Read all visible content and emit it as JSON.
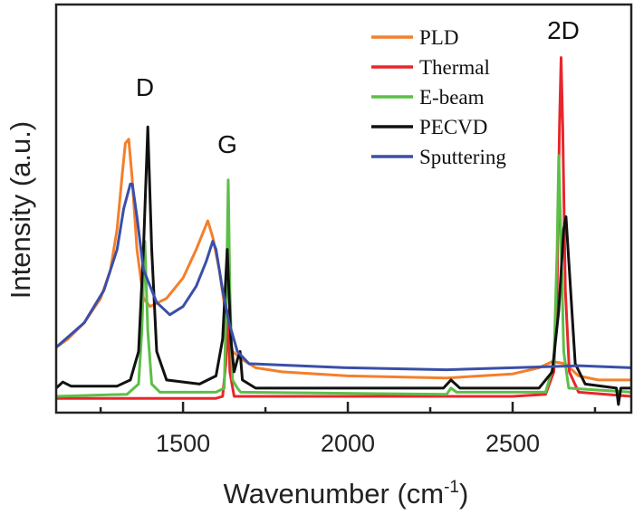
{
  "chart_data": {
    "type": "line",
    "xlabel": "Wavenumber (cm",
    "xlabel_sup": "-1",
    "xlabel_end": ")",
    "ylabel": "Intensity (a.u.)",
    "xlim": [
      1115,
      2860
    ],
    "ylim": [
      0,
      100
    ],
    "xticks": [
      1500,
      2000,
      2500
    ],
    "xminor": [
      1250,
      1750,
      2250,
      2750
    ],
    "grid": false,
    "legend_placement": "top-right",
    "annotations": [
      "D",
      "G",
      "2D"
    ],
    "series": [
      {
        "name": "PLD",
        "color": "#f47f2a",
        "points": [
          [
            1115,
            16
          ],
          [
            1150,
            18
          ],
          [
            1200,
            22
          ],
          [
            1250,
            28
          ],
          [
            1280,
            35
          ],
          [
            1300,
            45
          ],
          [
            1315,
            58
          ],
          [
            1325,
            66
          ],
          [
            1335,
            67
          ],
          [
            1345,
            58
          ],
          [
            1360,
            40
          ],
          [
            1380,
            28
          ],
          [
            1400,
            26
          ],
          [
            1450,
            28
          ],
          [
            1500,
            33
          ],
          [
            1540,
            40
          ],
          [
            1565,
            45
          ],
          [
            1575,
            47
          ],
          [
            1590,
            43
          ],
          [
            1610,
            35
          ],
          [
            1630,
            24
          ],
          [
            1650,
            15
          ],
          [
            1680,
            13
          ],
          [
            1720,
            11
          ],
          [
            1800,
            10
          ],
          [
            2000,
            9
          ],
          [
            2300,
            8.5
          ],
          [
            2500,
            9.5
          ],
          [
            2580,
            11
          ],
          [
            2620,
            12.5
          ],
          [
            2660,
            12
          ],
          [
            2700,
            9
          ],
          [
            2760,
            8
          ],
          [
            2860,
            8
          ]
        ]
      },
      {
        "name": "Thermal",
        "color": "#e8262b",
        "points": [
          [
            1115,
            3.5
          ],
          [
            1600,
            3.5
          ],
          [
            1620,
            4
          ],
          [
            1630,
            12
          ],
          [
            1636,
            25
          ],
          [
            1642,
            10
          ],
          [
            1655,
            4
          ],
          [
            2500,
            4
          ],
          [
            2600,
            4.5
          ],
          [
            2625,
            10
          ],
          [
            2635,
            30
          ],
          [
            2642,
            70
          ],
          [
            2647,
            87
          ],
          [
            2652,
            70
          ],
          [
            2660,
            30
          ],
          [
            2672,
            10
          ],
          [
            2700,
            5
          ],
          [
            2860,
            4
          ]
        ]
      },
      {
        "name": "E-beam",
        "color": "#5cbf47",
        "points": [
          [
            1115,
            4
          ],
          [
            1330,
            4.5
          ],
          [
            1365,
            7
          ],
          [
            1375,
            20
          ],
          [
            1384,
            42
          ],
          [
            1393,
            20
          ],
          [
            1405,
            7
          ],
          [
            1430,
            5
          ],
          [
            1600,
            5
          ],
          [
            1625,
            6
          ],
          [
            1632,
            30
          ],
          [
            1637,
            57
          ],
          [
            1642,
            30
          ],
          [
            1650,
            8
          ],
          [
            1665,
            6
          ],
          [
            1675,
            5
          ],
          [
            2300,
            4.5
          ],
          [
            2313,
            6
          ],
          [
            2330,
            5
          ],
          [
            2600,
            5
          ],
          [
            2625,
            12
          ],
          [
            2635,
            40
          ],
          [
            2640,
            63
          ],
          [
            2646,
            45
          ],
          [
            2655,
            15
          ],
          [
            2670,
            6
          ],
          [
            2860,
            5
          ]
        ]
      },
      {
        "name": "PECVD",
        "color": "#111111",
        "points": [
          [
            1115,
            6
          ],
          [
            1135,
            7.5
          ],
          [
            1160,
            6.5
          ],
          [
            1300,
            6.5
          ],
          [
            1340,
            8
          ],
          [
            1365,
            15
          ],
          [
            1380,
            40
          ],
          [
            1393,
            70
          ],
          [
            1405,
            40
          ],
          [
            1420,
            15
          ],
          [
            1450,
            8
          ],
          [
            1550,
            7
          ],
          [
            1600,
            9
          ],
          [
            1620,
            18
          ],
          [
            1634,
            40
          ],
          [
            1645,
            18
          ],
          [
            1655,
            10
          ],
          [
            1665,
            13
          ],
          [
            1673,
            15
          ],
          [
            1680,
            8
          ],
          [
            1720,
            6
          ],
          [
            2290,
            6
          ],
          [
            2313,
            8
          ],
          [
            2340,
            6
          ],
          [
            2580,
            6
          ],
          [
            2620,
            10
          ],
          [
            2640,
            25
          ],
          [
            2655,
            45
          ],
          [
            2662,
            48
          ],
          [
            2672,
            35
          ],
          [
            2690,
            12
          ],
          [
            2720,
            7
          ],
          [
            2815,
            6
          ],
          [
            2821,
            2
          ],
          [
            2828,
            6
          ],
          [
            2860,
            6
          ]
        ]
      },
      {
        "name": "Sputtering",
        "color": "#3a4fa8",
        "points": [
          [
            1115,
            16
          ],
          [
            1200,
            22
          ],
          [
            1260,
            30
          ],
          [
            1300,
            40
          ],
          [
            1320,
            50
          ],
          [
            1340,
            56
          ],
          [
            1346,
            56
          ],
          [
            1360,
            48
          ],
          [
            1380,
            35
          ],
          [
            1420,
            27
          ],
          [
            1460,
            24
          ],
          [
            1500,
            26
          ],
          [
            1540,
            31
          ],
          [
            1570,
            37
          ],
          [
            1590,
            42
          ],
          [
            1600,
            40
          ],
          [
            1620,
            30
          ],
          [
            1640,
            22
          ],
          [
            1665,
            15
          ],
          [
            1700,
            12
          ],
          [
            2000,
            11
          ],
          [
            2300,
            10.5
          ],
          [
            2500,
            11
          ],
          [
            2700,
            11.5
          ],
          [
            2860,
            11
          ]
        ]
      }
    ]
  }
}
